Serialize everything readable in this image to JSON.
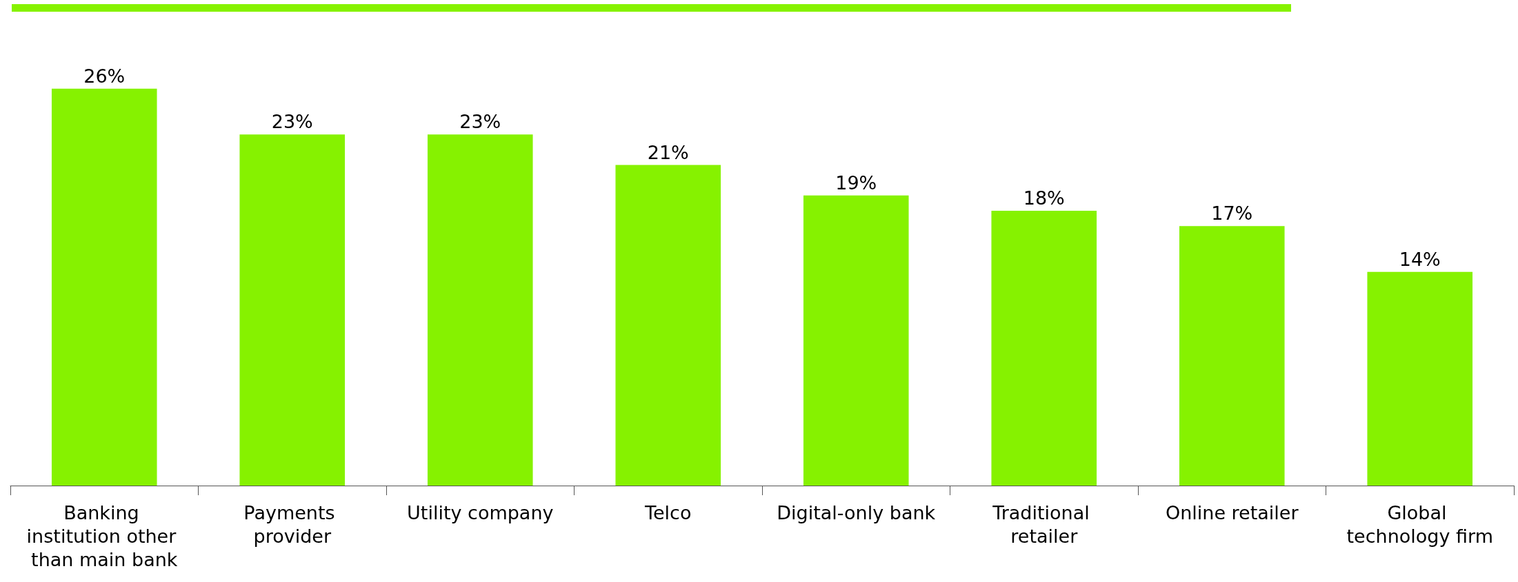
{
  "chart_data": {
    "type": "bar",
    "categories": [
      "Banking institution other than main bank",
      "Payments provider",
      "Utility company",
      "Telco",
      "Digital-only bank",
      "Traditional retailer",
      "Online retailer",
      "Global technology firm"
    ],
    "values": [
      26,
      23,
      23,
      21,
      19,
      18,
      17,
      14
    ],
    "value_labels": [
      "26%",
      "23%",
      "23%",
      "21%",
      "19%",
      "18%",
      "17%",
      "14%"
    ],
    "color": "#86f200"
  }
}
